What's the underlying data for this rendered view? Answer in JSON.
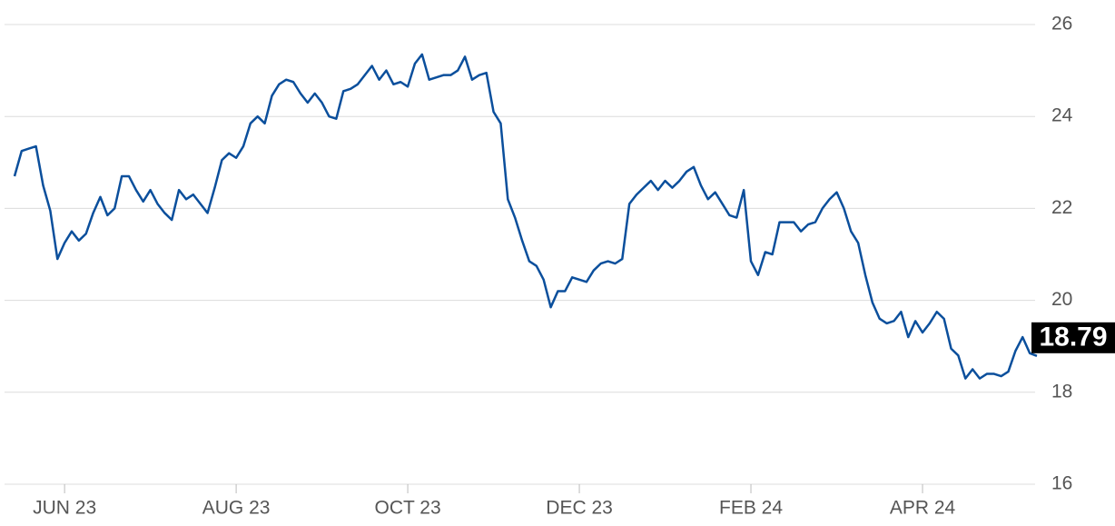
{
  "chart_data": {
    "type": "line",
    "categories": [
      null,
      null,
      null,
      null,
      null,
      null,
      null,
      "JUN 23",
      null,
      null,
      null,
      null,
      null,
      null,
      null,
      null,
      null,
      null,
      null,
      null,
      null,
      null,
      null,
      null,
      null,
      null,
      null,
      null,
      null,
      null,
      null,
      "AUG 23",
      null,
      null,
      null,
      null,
      null,
      null,
      null,
      null,
      null,
      null,
      null,
      null,
      null,
      null,
      null,
      null,
      null,
      null,
      null,
      null,
      null,
      null,
      null,
      "OCT 23",
      null,
      null,
      null,
      null,
      null,
      null,
      null,
      null,
      null,
      null,
      null,
      null,
      null,
      null,
      null,
      null,
      null,
      null,
      null,
      null,
      null,
      null,
      null,
      "DEC 23",
      null,
      null,
      null,
      null,
      null,
      null,
      null,
      null,
      null,
      null,
      null,
      null,
      null,
      null,
      null,
      null,
      null,
      null,
      null,
      null,
      null,
      null,
      null,
      "FEB 24",
      null,
      null,
      null,
      null,
      null,
      null,
      null,
      null,
      null,
      null,
      null,
      null,
      null,
      null,
      null,
      null,
      null,
      null,
      null,
      null,
      null,
      null,
      null,
      "APR 24",
      null,
      null,
      null,
      null,
      null,
      null,
      null,
      null,
      null,
      null,
      null,
      null,
      null,
      null,
      null,
      null
    ],
    "values": [
      22.7,
      23.25,
      23.3,
      23.35,
      22.5,
      21.95,
      20.9,
      21.25,
      21.5,
      21.3,
      21.45,
      21.9,
      22.25,
      21.85,
      22.0,
      22.7,
      22.7,
      22.4,
      22.15,
      22.4,
      22.1,
      21.9,
      21.75,
      22.4,
      22.2,
      22.3,
      22.1,
      21.9,
      22.45,
      23.05,
      23.2,
      23.1,
      23.35,
      23.85,
      24.0,
      23.85,
      24.45,
      24.7,
      24.8,
      24.75,
      24.5,
      24.3,
      24.5,
      24.3,
      24.0,
      23.95,
      24.55,
      24.6,
      24.7,
      24.9,
      25.1,
      24.8,
      25.0,
      24.7,
      24.75,
      24.65,
      25.15,
      25.35,
      24.8,
      24.85,
      24.9,
      24.9,
      25.0,
      25.3,
      24.8,
      24.9,
      24.95,
      24.1,
      23.85,
      22.2,
      21.8,
      21.3,
      20.85,
      20.75,
      20.45,
      19.85,
      20.2,
      20.2,
      20.5,
      20.45,
      20.4,
      20.65,
      20.8,
      20.85,
      20.8,
      20.9,
      22.1,
      22.3,
      22.45,
      22.6,
      22.4,
      22.6,
      22.45,
      22.6,
      22.8,
      22.9,
      22.5,
      22.2,
      22.35,
      22.1,
      21.85,
      21.8,
      22.4,
      20.85,
      20.55,
      21.05,
      21.0,
      21.7,
      21.7,
      21.7,
      21.5,
      21.65,
      21.7,
      22.0,
      22.2,
      22.35,
      22.0,
      21.5,
      21.25,
      20.55,
      19.95,
      19.6,
      19.5,
      19.55,
      19.75,
      19.2,
      19.55,
      19.3,
      19.5,
      19.75,
      19.6,
      18.95,
      18.8,
      18.3,
      18.5,
      18.3,
      18.4,
      18.4,
      18.35,
      18.45,
      18.9,
      19.2,
      18.85,
      18.79
    ],
    "color": "#0b4f9c",
    "ylim": [
      16,
      26
    ],
    "yticks": [
      16,
      18,
      20,
      22,
      24,
      26
    ],
    "grid": true
  }
}
